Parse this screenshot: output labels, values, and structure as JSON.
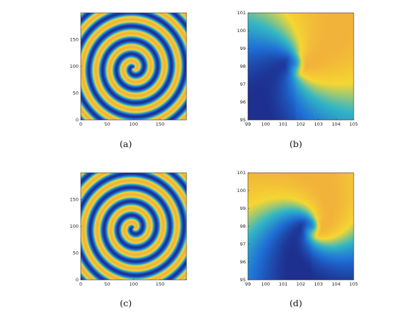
{
  "figure": {
    "panels": [
      {
        "id": "a",
        "caption": "(a)",
        "kind": "spiral",
        "x_ticks": [
          "0",
          "50",
          "100",
          "150"
        ],
        "y_ticks": [
          "0",
          "50",
          "100",
          "150"
        ],
        "xlim": [
          0,
          200
        ],
        "ylim": [
          0,
          200
        ],
        "spiral": {
          "center": [
            100,
            97
          ],
          "arms": 1,
          "turn_spacing": 26,
          "phase": 0.0
        }
      },
      {
        "id": "b",
        "caption": "(b)",
        "kind": "field",
        "x_ticks": [
          "99",
          "100",
          "101",
          "102",
          "103",
          "104",
          "105"
        ],
        "y_ticks": [
          "95",
          "96",
          "97",
          "98",
          "99",
          "100",
          "101"
        ],
        "xlim": [
          99,
          105
        ],
        "ylim": [
          95,
          101
        ],
        "tip": [
          101.7,
          98.1
        ],
        "sharpness": 1.0
      },
      {
        "id": "c",
        "caption": "(c)",
        "kind": "spiral",
        "x_ticks": [
          "0",
          "50",
          "100",
          "150"
        ],
        "y_ticks": [
          "0",
          "50",
          "100",
          "150"
        ],
        "xlim": [
          0,
          200
        ],
        "ylim": [
          0,
          200
        ],
        "spiral": {
          "center": [
            100,
            97
          ],
          "arms": 1,
          "turn_spacing": 26,
          "phase": 0.6
        }
      },
      {
        "id": "d",
        "caption": "(d)",
        "kind": "field",
        "x_ticks": [
          "99",
          "100",
          "101",
          "102",
          "103",
          "104",
          "105"
        ],
        "y_ticks": [
          "95",
          "96",
          "97",
          "98",
          "99",
          "100",
          "101"
        ],
        "xlim": [
          99,
          105
        ],
        "ylim": [
          95,
          101
        ],
        "tip": [
          102.6,
          97.9
        ],
        "sharpness": 2.2
      }
    ],
    "colors": {
      "dark_blue": "#1d2f8f",
      "blue": "#1f6fd6",
      "cyan": "#33b7c4",
      "yellow": "#f5d732",
      "gold": "#f2b33a"
    }
  }
}
